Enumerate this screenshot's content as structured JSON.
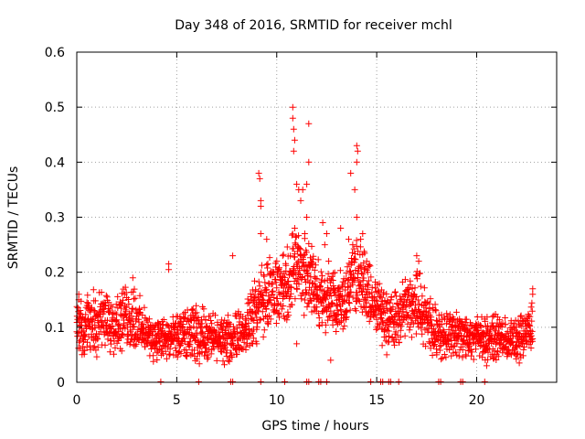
{
  "chart_data": {
    "type": "scatter",
    "title": "Day 348 of 2016, SRMTID for receiver mchl",
    "xlabel": "GPS time / hours",
    "ylabel": "SRMTID / TECUs",
    "xlim": [
      0,
      24
    ],
    "ylim": [
      0,
      0.6
    ],
    "xticks": [
      "0",
      "5",
      "10",
      "15",
      "20"
    ],
    "yticks": [
      "0",
      "0.1",
      "0.2",
      "0.3",
      "0.4",
      "0.5",
      "0.6"
    ],
    "grid": true,
    "legend": "none",
    "marker": "+",
    "series_color": "#ff0000",
    "series": [
      {
        "name": "SRMTID",
        "envelope": [
          {
            "hour": 0.0,
            "median": 0.1,
            "spread": 0.045
          },
          {
            "hour": 1.0,
            "median": 0.11,
            "spread": 0.05
          },
          {
            "hour": 2.0,
            "median": 0.11,
            "spread": 0.05
          },
          {
            "hour": 2.8,
            "median": 0.12,
            "spread": 0.055
          },
          {
            "hour": 3.5,
            "median": 0.085,
            "spread": 0.035
          },
          {
            "hour": 4.5,
            "median": 0.075,
            "spread": 0.035
          },
          {
            "hour": 6.0,
            "median": 0.09,
            "spread": 0.045
          },
          {
            "hour": 7.5,
            "median": 0.075,
            "spread": 0.035
          },
          {
            "hour": 8.5,
            "median": 0.1,
            "spread": 0.045
          },
          {
            "hour": 9.3,
            "median": 0.15,
            "spread": 0.06
          },
          {
            "hour": 10.3,
            "median": 0.17,
            "spread": 0.055
          },
          {
            "hour": 11.0,
            "median": 0.21,
            "spread": 0.07
          },
          {
            "hour": 11.8,
            "median": 0.18,
            "spread": 0.06
          },
          {
            "hour": 12.5,
            "median": 0.14,
            "spread": 0.05
          },
          {
            "hour": 13.3,
            "median": 0.15,
            "spread": 0.055
          },
          {
            "hour": 14.0,
            "median": 0.2,
            "spread": 0.06
          },
          {
            "hour": 14.8,
            "median": 0.14,
            "spread": 0.055
          },
          {
            "hour": 15.8,
            "median": 0.11,
            "spread": 0.045
          },
          {
            "hour": 17.0,
            "median": 0.15,
            "spread": 0.06
          },
          {
            "hour": 18.0,
            "median": 0.09,
            "spread": 0.04
          },
          {
            "hour": 19.5,
            "median": 0.085,
            "spread": 0.035
          },
          {
            "hour": 21.0,
            "median": 0.08,
            "spread": 0.035
          },
          {
            "hour": 22.0,
            "median": 0.075,
            "spread": 0.035
          },
          {
            "hour": 22.8,
            "median": 0.1,
            "spread": 0.04
          }
        ],
        "points": [
          [
            4.6,
            0.215
          ],
          [
            4.6,
            0.205
          ],
          [
            9.1,
            0.38
          ],
          [
            9.15,
            0.37
          ],
          [
            9.2,
            0.33
          ],
          [
            9.2,
            0.32
          ],
          [
            9.2,
            0.27
          ],
          [
            10.8,
            0.5
          ],
          [
            10.8,
            0.48
          ],
          [
            10.85,
            0.46
          ],
          [
            10.9,
            0.44
          ],
          [
            10.85,
            0.42
          ],
          [
            11.0,
            0.36
          ],
          [
            11.1,
            0.35
          ],
          [
            11.2,
            0.33
          ],
          [
            11.3,
            0.35
          ],
          [
            11.5,
            0.36
          ],
          [
            11.6,
            0.47
          ],
          [
            11.6,
            0.4
          ],
          [
            11.4,
            0.27
          ],
          [
            11.5,
            0.3
          ],
          [
            10.9,
            0.28
          ],
          [
            12.3,
            0.29
          ],
          [
            12.4,
            0.25
          ],
          [
            12.5,
            0.27
          ],
          [
            12.6,
            0.22
          ],
          [
            14.0,
            0.43
          ],
          [
            14.05,
            0.42
          ],
          [
            14.0,
            0.4
          ],
          [
            13.9,
            0.35
          ],
          [
            14.0,
            0.3
          ],
          [
            14.2,
            0.26
          ],
          [
            14.3,
            0.27
          ],
          [
            13.6,
            0.26
          ],
          [
            13.8,
            0.25
          ],
          [
            13.7,
            0.38
          ],
          [
            13.2,
            0.28
          ],
          [
            14.5,
            0.22
          ],
          [
            17.0,
            0.23
          ],
          [
            17.1,
            0.22
          ],
          [
            10.3,
            0.23
          ],
          [
            10.0,
            0.22
          ],
          [
            7.8,
            0.23
          ],
          [
            2.8,
            0.19
          ],
          [
            9.5,
            0.26
          ],
          [
            11.0,
            0.07
          ],
          [
            9.0,
            0.07
          ],
          [
            12.7,
            0.04
          ],
          [
            22.8,
            0.17
          ],
          [
            22.8,
            0.16
          ],
          [
            0.1,
            0.16
          ],
          [
            0.1,
            0.15
          ],
          [
            15.5,
            0.05
          ],
          [
            18.0,
            0.05
          ],
          [
            20.5,
            0.03
          ]
        ],
        "zero_points": [
          4.2,
          6.1,
          7.7,
          7.8,
          9.2,
          10.4,
          11.5,
          11.6,
          12.1,
          12.2,
          12.5,
          14.7,
          15.2,
          15.3,
          15.6,
          15.7,
          16.1,
          18.1,
          18.2,
          19.2,
          19.3,
          20.4
        ]
      }
    ]
  }
}
